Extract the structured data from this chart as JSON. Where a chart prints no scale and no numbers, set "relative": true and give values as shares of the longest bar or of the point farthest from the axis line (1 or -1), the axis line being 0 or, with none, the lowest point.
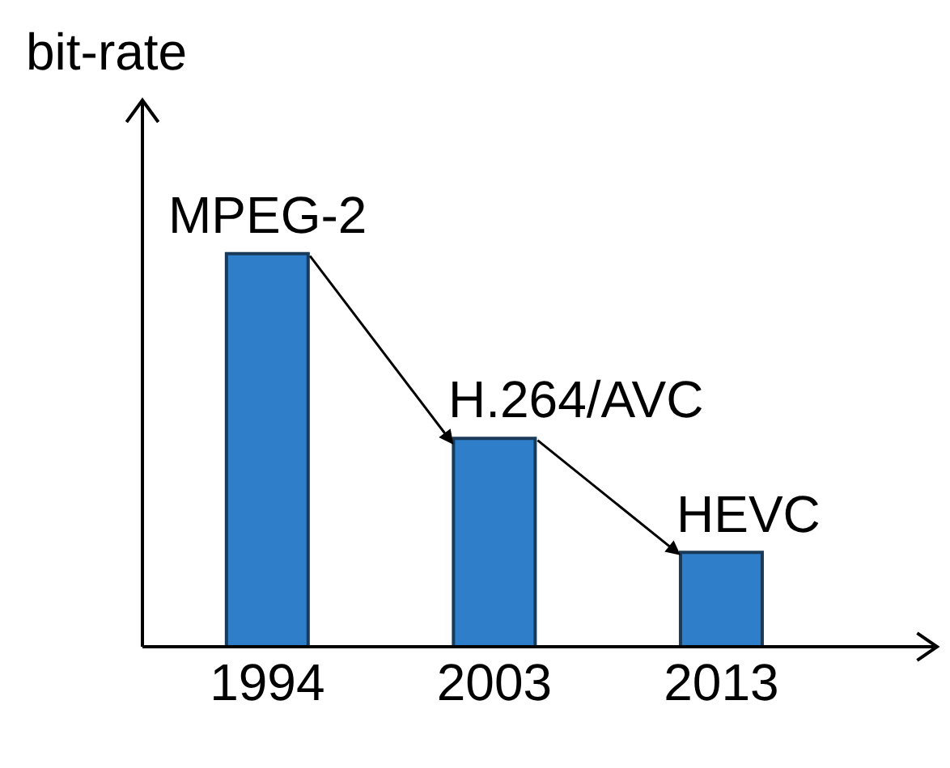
{
  "chart_data": {
    "type": "bar",
    "relative": true,
    "ylabel": "bit-rate",
    "categories": [
      "1994",
      "2003",
      "2013"
    ],
    "values": [
      1,
      0.53,
      0.24
    ],
    "color": "#2f7ec9",
    "annotations": [
      {
        "text": "MPEG-2",
        "x": "1994",
        "y": 1
      },
      {
        "text": "H.264/AVC",
        "x": "2003",
        "y": 0.53
      },
      {
        "text": "HEVC",
        "x": "2013",
        "y": 0.24
      }
    ],
    "legend": false
  }
}
